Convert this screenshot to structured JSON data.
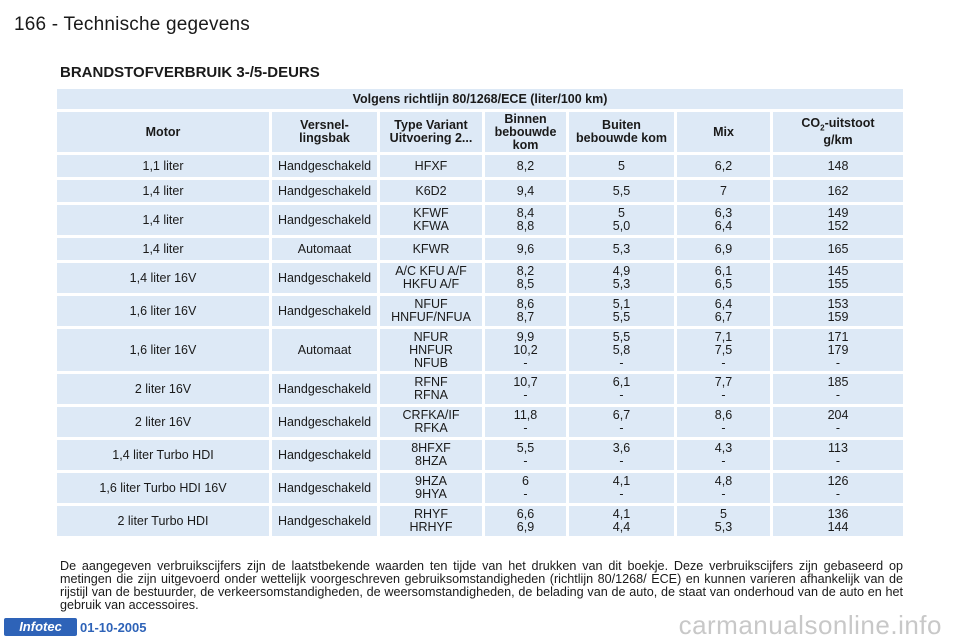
{
  "header": {
    "page_title": "166 - Technische gegevens"
  },
  "section": {
    "title": "BRANDSTOFVERBRUIK 3-/5-DEURS"
  },
  "table": {
    "caption": "Volgens richtlijn 80/1268/ECE (liter/100 km)",
    "columns": {
      "motor": "Motor",
      "transmission": "Versnel-\nlingsbak",
      "type": "Type Variant\nUitvoering 2...",
      "urban": "Binnen\nbebouwde\nkom",
      "extra_urban": "Buiten\nbebouwde kom",
      "mix": "Mix",
      "co2_prefix": "CO",
      "co2_sub": "2",
      "co2_suffix": "-uitstoot\ng/km"
    },
    "rows": [
      {
        "motor": "1,1 liter",
        "trans": "Handgeschakeld",
        "type": "HFXF",
        "urban": "8,2",
        "extra": "5",
        "mix": "6,2",
        "co2": "148",
        "h": 22
      },
      {
        "motor": "1,4 liter",
        "trans": "Handgeschakeld",
        "type": "K6D2",
        "urban": "9,4",
        "extra": "5,5",
        "mix": "7",
        "co2": "162",
        "h": 22
      },
      {
        "motor": "1,4 liter",
        "trans": "Handgeschakeld",
        "type": "KFWF\nKFWA",
        "urban": "8,4\n8,8",
        "extra": "5\n5,0",
        "mix": "6,3\n6,4",
        "co2": "149\n152",
        "h": 30
      },
      {
        "motor": "1,4 liter",
        "trans": "Automaat",
        "type": "KFWR",
        "urban": "9,6",
        "extra": "5,3",
        "mix": "6,9",
        "co2": "165",
        "h": 22
      },
      {
        "motor": "1,4 liter 16V",
        "trans": "Handgeschakeld",
        "type": "A/C KFU A/F\nHKFU A/F",
        "urban": "8,2\n8,5",
        "extra": "4,9\n5,3",
        "mix": "6,1\n6,5",
        "co2": "145\n155",
        "h": 30
      },
      {
        "motor": "1,6 liter 16V",
        "trans": "Handgeschakeld",
        "type": "NFUF\nHNFUF/NFUA",
        "urban": "8,6\n8,7",
        "extra": "5,1\n5,5",
        "mix": "6,4\n6,7",
        "co2": "153\n159",
        "h": 30
      },
      {
        "motor": "1,6 liter 16V",
        "trans": "Automaat",
        "type": "NFUR\nHNFUR\nNFUB",
        "urban": "9,9\n10,2\n-",
        "extra": "5,5\n5,8\n-",
        "mix": "7,1\n7,5\n-",
        "co2": "171\n179\n-",
        "h": 42
      },
      {
        "motor": "2 liter 16V",
        "trans": "Handgeschakeld",
        "type": "RFNF\nRFNA",
        "urban": "10,7\n-",
        "extra": "6,1\n-",
        "mix": "7,7\n-",
        "co2": "185\n-",
        "h": 30
      },
      {
        "motor": "2 liter 16V",
        "trans": "Handgeschakeld",
        "type": "CRFKA/IF\nRFKA",
        "urban": "11,8\n-",
        "extra": "6,7\n-",
        "mix": "8,6\n-",
        "co2": "204\n-",
        "h": 30
      },
      {
        "motor": "1,4 liter Turbo HDI",
        "trans": "Handgeschakeld",
        "type": "8HFXF\n8HZA",
        "urban": "5,5\n-",
        "extra": "3,6\n-",
        "mix": "4,3\n-",
        "co2": "113\n-",
        "h": 30
      },
      {
        "motor": "1,6 liter Turbo HDI 16V",
        "trans": "Handgeschakeld",
        "type": "9HZA\n9HYA",
        "urban": "6\n-",
        "extra": "4,1\n-",
        "mix": "4,8\n-",
        "co2": "126\n-",
        "h": 30
      },
      {
        "motor": "2 liter Turbo HDI",
        "trans": "Handgeschakeld",
        "type": "RHYF\nHRHYF",
        "urban": "6,6\n6,9",
        "extra": "4,1\n4,4",
        "mix": "5\n5,3",
        "co2": "136\n144",
        "h": 30
      }
    ]
  },
  "footnote": "De aangegeven verbruikscijfers zijn de laatstbekende waarden ten tijde van het drukken van dit boekje. Deze verbruikscijfers zijn gebaseerd op metingen die zijn uitgevoerd onder wettelijk voorgeschreven gebruiksomstandigheden (richtlijn 80/1268/ ECE) en kunnen varieren afhankelijk van de rijstijl van de bestuurder, de verkeersomstandigheden, de weersomstandigheden, de belading van de auto, de staat van onderhoud van de auto en het gebruik van accessoires.",
  "footer": {
    "badge": "Infotec",
    "date": "01-10-2005"
  },
  "watermark": "carmanualsonline.info"
}
